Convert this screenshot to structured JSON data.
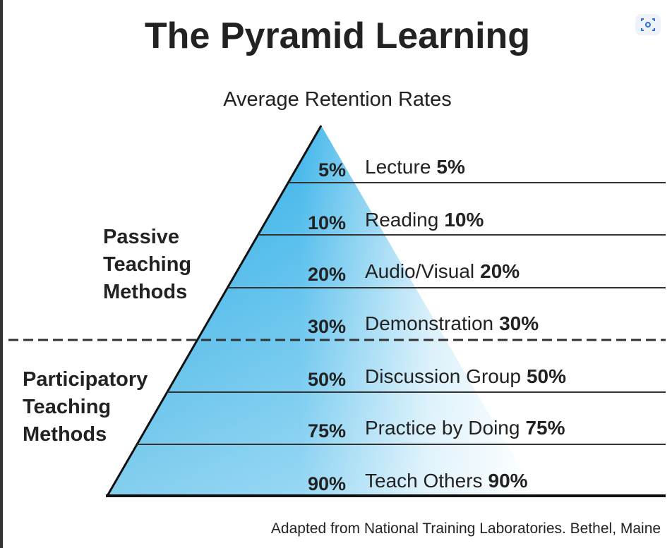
{
  "title": "The Pyramid Learning",
  "subtitle": "Average Retention Rates",
  "groups": [
    {
      "lines": [
        "Passive",
        "Teaching",
        "Methods"
      ]
    },
    {
      "lines": [
        "Participatory",
        "Teaching",
        "Methods"
      ]
    }
  ],
  "levels": [
    {
      "label": "Lecture",
      "rate": "5%"
    },
    {
      "label": "Reading",
      "rate": "10%"
    },
    {
      "label": "Audio/Visual",
      "rate": "20%"
    },
    {
      "label": "Demonstration",
      "rate": "30%"
    },
    {
      "label": "Discussion Group",
      "rate": "50%"
    },
    {
      "label": "Practice by Doing",
      "rate": "75%"
    },
    {
      "label": "Teach Others",
      "rate": "90%"
    }
  ],
  "footer": "Adapted from National Training Laboratories. Bethel, Maine"
}
